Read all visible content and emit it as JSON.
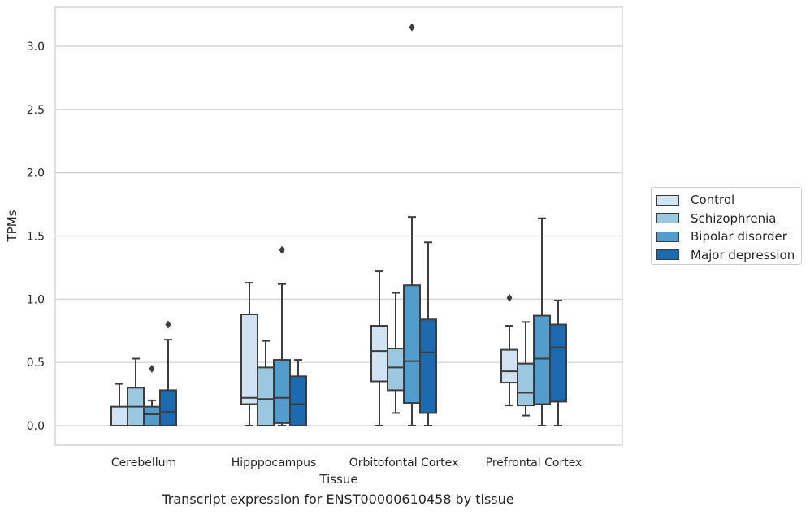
{
  "caption": "Transcript expression for ENST00000610458 by tissue",
  "legend": {
    "items": [
      {
        "label": "Control",
        "color": "#d1e2f3"
      },
      {
        "label": "Schizophrenia",
        "color": "#9ac8e0"
      },
      {
        "label": "Bipolar disorder",
        "color": "#529dcc"
      },
      {
        "label": "Major depression",
        "color": "#1c6aaf"
      }
    ]
  },
  "chart_data": {
    "type": "box",
    "xlabel": "Tissue",
    "ylabel": "TPMs",
    "ylim": [
      -0.15,
      3.3
    ],
    "yticks": [
      "0.0",
      "0.5",
      "1.0",
      "1.5",
      "2.0",
      "2.5",
      "3.0"
    ],
    "ytick_values": [
      0,
      0.5,
      1.0,
      1.5,
      2.0,
      2.5,
      3.0
    ],
    "categories": [
      "Cerebellum",
      "Hipppocampus",
      "Orbitofontal Cortex",
      "Prefrontal Cortex"
    ],
    "grid": "horizontal",
    "legend_position": "right",
    "series": [
      {
        "name": "Control",
        "color": "#d1e2f3",
        "boxes": [
          {
            "min": 0.0,
            "q1": 0.0,
            "median": 0.0,
            "q3": 0.15,
            "max": 0.33,
            "outliers": []
          },
          {
            "min": 0.0,
            "q1": 0.17,
            "median": 0.22,
            "q3": 0.88,
            "max": 1.13,
            "outliers": []
          },
          {
            "min": 0.0,
            "q1": 0.35,
            "median": 0.59,
            "q3": 0.79,
            "max": 1.22,
            "outliers": []
          },
          {
            "min": 0.16,
            "q1": 0.34,
            "median": 0.43,
            "q3": 0.6,
            "max": 0.79,
            "outliers": [
              1.01
            ]
          }
        ]
      },
      {
        "name": "Schizophrenia",
        "color": "#9ac8e0",
        "boxes": [
          {
            "min": 0.0,
            "q1": 0.0,
            "median": 0.15,
            "q3": 0.3,
            "max": 0.53,
            "outliers": []
          },
          {
            "min": 0.0,
            "q1": 0.0,
            "median": 0.21,
            "q3": 0.46,
            "max": 0.67,
            "outliers": []
          },
          {
            "min": 0.1,
            "q1": 0.28,
            "median": 0.46,
            "q3": 0.61,
            "max": 1.05,
            "outliers": []
          },
          {
            "min": 0.08,
            "q1": 0.16,
            "median": 0.26,
            "q3": 0.49,
            "max": 0.82,
            "outliers": []
          }
        ]
      },
      {
        "name": "Bipolar disorder",
        "color": "#529dcc",
        "boxes": [
          {
            "min": 0.0,
            "q1": 0.0,
            "median": 0.09,
            "q3": 0.15,
            "max": 0.2,
            "outliers": [
              0.45
            ]
          },
          {
            "min": 0.0,
            "q1": 0.02,
            "median": 0.22,
            "q3": 0.52,
            "max": 1.12,
            "outliers": [
              1.39
            ]
          },
          {
            "min": 0.0,
            "q1": 0.18,
            "median": 0.51,
            "q3": 1.11,
            "max": 1.65,
            "outliers": [
              3.15
            ]
          },
          {
            "min": 0.0,
            "q1": 0.17,
            "median": 0.53,
            "q3": 0.87,
            "max": 1.64,
            "outliers": []
          }
        ]
      },
      {
        "name": "Major depression",
        "color": "#1c6aaf",
        "boxes": [
          {
            "min": 0.0,
            "q1": 0.0,
            "median": 0.11,
            "q3": 0.28,
            "max": 0.68,
            "outliers": [
              0.8
            ]
          },
          {
            "min": 0.0,
            "q1": 0.0,
            "median": 0.17,
            "q3": 0.39,
            "max": 0.52,
            "outliers": []
          },
          {
            "min": 0.0,
            "q1": 0.1,
            "median": 0.58,
            "q3": 0.84,
            "max": 1.45,
            "outliers": []
          },
          {
            "min": 0.0,
            "q1": 0.19,
            "median": 0.62,
            "q3": 0.8,
            "max": 0.99,
            "outliers": []
          }
        ]
      }
    ]
  }
}
